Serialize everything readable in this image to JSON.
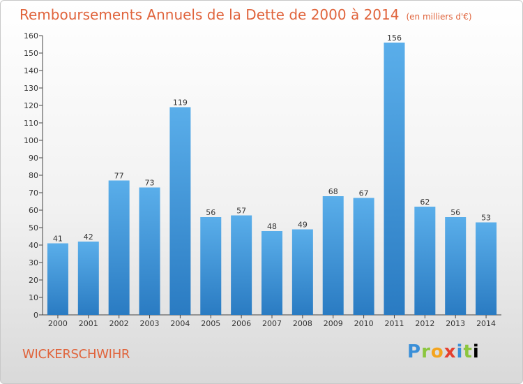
{
  "title": "Remboursements Annuels de la Dette de 2000 à 2014",
  "subtitle": "(en milliers d'€)",
  "commune": "WICKERSCHWIHR",
  "brand": [
    "P",
    "r",
    "o",
    "x",
    "i",
    "t",
    "i"
  ],
  "colors": {
    "title": "#e0643c",
    "bar_top": "#5aaeea",
    "bar_bottom": "#2a7bc2"
  },
  "chart_data": {
    "type": "bar",
    "categories": [
      "2000",
      "2001",
      "2002",
      "2003",
      "2004",
      "2005",
      "2006",
      "2007",
      "2008",
      "2009",
      "2010",
      "2011",
      "2012",
      "2013",
      "2014"
    ],
    "values": [
      41,
      42,
      77,
      73,
      119,
      56,
      57,
      48,
      49,
      68,
      67,
      156,
      62,
      56,
      53
    ],
    "ylim": [
      0,
      160
    ],
    "yticks": [
      0,
      10,
      20,
      30,
      40,
      50,
      60,
      70,
      80,
      90,
      100,
      110,
      120,
      130,
      140,
      150,
      160
    ],
    "grid": false,
    "data_labels": true
  }
}
